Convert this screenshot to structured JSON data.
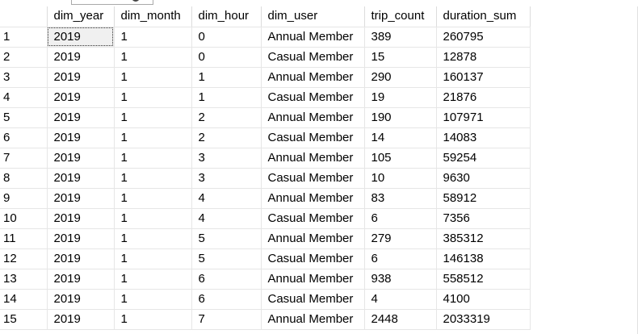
{
  "columns": [
    "dim_year",
    "dim_month",
    "dim_hour",
    "dim_user",
    "trip_count",
    "duration_sum"
  ],
  "rows": [
    {
      "n": "1",
      "cells": [
        "2019",
        "1",
        "0",
        "Annual Member",
        "389",
        "260795"
      ]
    },
    {
      "n": "2",
      "cells": [
        "2019",
        "1",
        "0",
        "Casual Member",
        "15",
        "12878"
      ]
    },
    {
      "n": "3",
      "cells": [
        "2019",
        "1",
        "1",
        "Annual Member",
        "290",
        "160137"
      ]
    },
    {
      "n": "4",
      "cells": [
        "2019",
        "1",
        "1",
        "Casual Member",
        "19",
        "21876"
      ]
    },
    {
      "n": "5",
      "cells": [
        "2019",
        "1",
        "2",
        "Annual Member",
        "190",
        "107971"
      ]
    },
    {
      "n": "6",
      "cells": [
        "2019",
        "1",
        "2",
        "Casual Member",
        "14",
        "14083"
      ]
    },
    {
      "n": "7",
      "cells": [
        "2019",
        "1",
        "3",
        "Annual Member",
        "105",
        "59254"
      ]
    },
    {
      "n": "8",
      "cells": [
        "2019",
        "1",
        "3",
        "Casual Member",
        "10",
        "9630"
      ]
    },
    {
      "n": "9",
      "cells": [
        "2019",
        "1",
        "4",
        "Annual Member",
        "83",
        "58912"
      ]
    },
    {
      "n": "10",
      "cells": [
        "2019",
        "1",
        "4",
        "Casual Member",
        "6",
        "7356"
      ]
    },
    {
      "n": "11",
      "cells": [
        "2019",
        "1",
        "5",
        "Annual Member",
        "279",
        "385312"
      ]
    },
    {
      "n": "12",
      "cells": [
        "2019",
        "1",
        "5",
        "Casual Member",
        "6",
        "146138"
      ]
    },
    {
      "n": "13",
      "cells": [
        "2019",
        "1",
        "6",
        "Annual Member",
        "938",
        "558512"
      ]
    },
    {
      "n": "14",
      "cells": [
        "2019",
        "1",
        "6",
        "Casual Member",
        "4",
        "4100"
      ]
    },
    {
      "n": "15",
      "cells": [
        "2019",
        "1",
        "7",
        "Annual Member",
        "2448",
        "2033319"
      ]
    }
  ]
}
